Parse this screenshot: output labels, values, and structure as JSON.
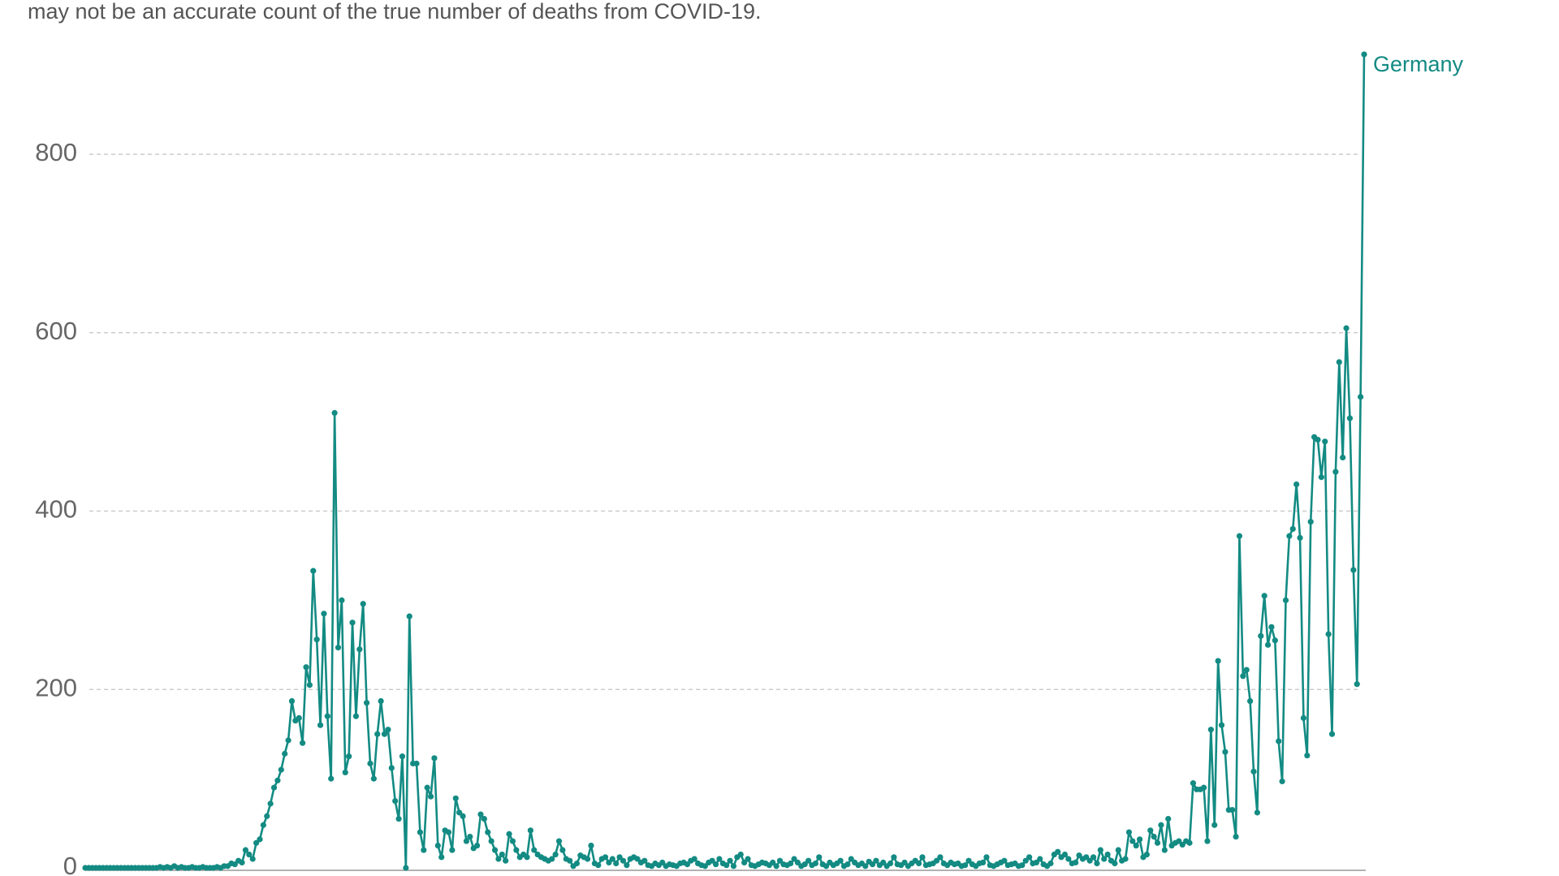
{
  "chart_data": {
    "type": "line",
    "subtitle": "may not be an accurate count of the true number of deaths from COVID-19.",
    "ylim": [
      0,
      900
    ],
    "yticks": [
      0,
      200,
      400,
      600,
      800
    ],
    "grid": true,
    "series": [
      {
        "name": "Germany",
        "color": "#138b83",
        "values": [
          0,
          0,
          0,
          0,
          0,
          0,
          0,
          0,
          0,
          0,
          0,
          0,
          0,
          0,
          0,
          0,
          0,
          0,
          0,
          0,
          0,
          1,
          0,
          1,
          0,
          2,
          0,
          1,
          0,
          0,
          1,
          0,
          0,
          1,
          0,
          0,
          0,
          1,
          0,
          2,
          2,
          5,
          4,
          8,
          6,
          20,
          15,
          10,
          28,
          32,
          48,
          58,
          72,
          90,
          98,
          110,
          128,
          143,
          187,
          165,
          168,
          140,
          225,
          205,
          333,
          256,
          160,
          285,
          170,
          100,
          510,
          247,
          300,
          107,
          125,
          275,
          170,
          245,
          296,
          185,
          117,
          100,
          150,
          187,
          150,
          155,
          112,
          75,
          55,
          125,
          0,
          282,
          117,
          117,
          40,
          20,
          90,
          80,
          123,
          25,
          12,
          42,
          40,
          20,
          78,
          62,
          58,
          30,
          35,
          22,
          25,
          60,
          55,
          40,
          30,
          20,
          10,
          15,
          8,
          38,
          30,
          20,
          12,
          15,
          12,
          42,
          20,
          15,
          12,
          10,
          8,
          10,
          15,
          30,
          20,
          10,
          8,
          2,
          5,
          14,
          12,
          10,
          25,
          5,
          3,
          10,
          12,
          6,
          10,
          5,
          12,
          8,
          3,
          10,
          12,
          10,
          6,
          8,
          3,
          2,
          5,
          3,
          6,
          2,
          4,
          3,
          2,
          5,
          6,
          4,
          8,
          10,
          5,
          3,
          2,
          6,
          8,
          4,
          10,
          5,
          3,
          8,
          2,
          12,
          15,
          6,
          10,
          3,
          2,
          4,
          6,
          5,
          3,
          6,
          2,
          8,
          4,
          3,
          5,
          10,
          6,
          2,
          4,
          8,
          3,
          5,
          12,
          4,
          2,
          6,
          3,
          5,
          8,
          2,
          4,
          10,
          6,
          3,
          5,
          2,
          7,
          4,
          8,
          3,
          6,
          2,
          5,
          12,
          4,
          3,
          6,
          2,
          5,
          8,
          5,
          12,
          3,
          4,
          5,
          8,
          12,
          5,
          3,
          6,
          4,
          5,
          2,
          3,
          8,
          4,
          2,
          5,
          6,
          12,
          3,
          2,
          4,
          6,
          8,
          3,
          4,
          5,
          2,
          3,
          8,
          12,
          5,
          6,
          10,
          4,
          2,
          5,
          15,
          18,
          12,
          15,
          10,
          5,
          6,
          14,
          10,
          12,
          8,
          12,
          5,
          20,
          10,
          15,
          8,
          5,
          20,
          8,
          10,
          40,
          30,
          25,
          32,
          12,
          15,
          42,
          35,
          28,
          48,
          20,
          55,
          25,
          28,
          30,
          26,
          30,
          28,
          95,
          88,
          88,
          90,
          30,
          155,
          48,
          232,
          160,
          130,
          65,
          65,
          35,
          372,
          215,
          222,
          187,
          108,
          62,
          260,
          305,
          250,
          270,
          255,
          142,
          97,
          300,
          372,
          380,
          430,
          370,
          168,
          126,
          388,
          483,
          480,
          438,
          478,
          262,
          150,
          444,
          567,
          460,
          605,
          504,
          334,
          206,
          528,
          912
        ]
      }
    ]
  }
}
